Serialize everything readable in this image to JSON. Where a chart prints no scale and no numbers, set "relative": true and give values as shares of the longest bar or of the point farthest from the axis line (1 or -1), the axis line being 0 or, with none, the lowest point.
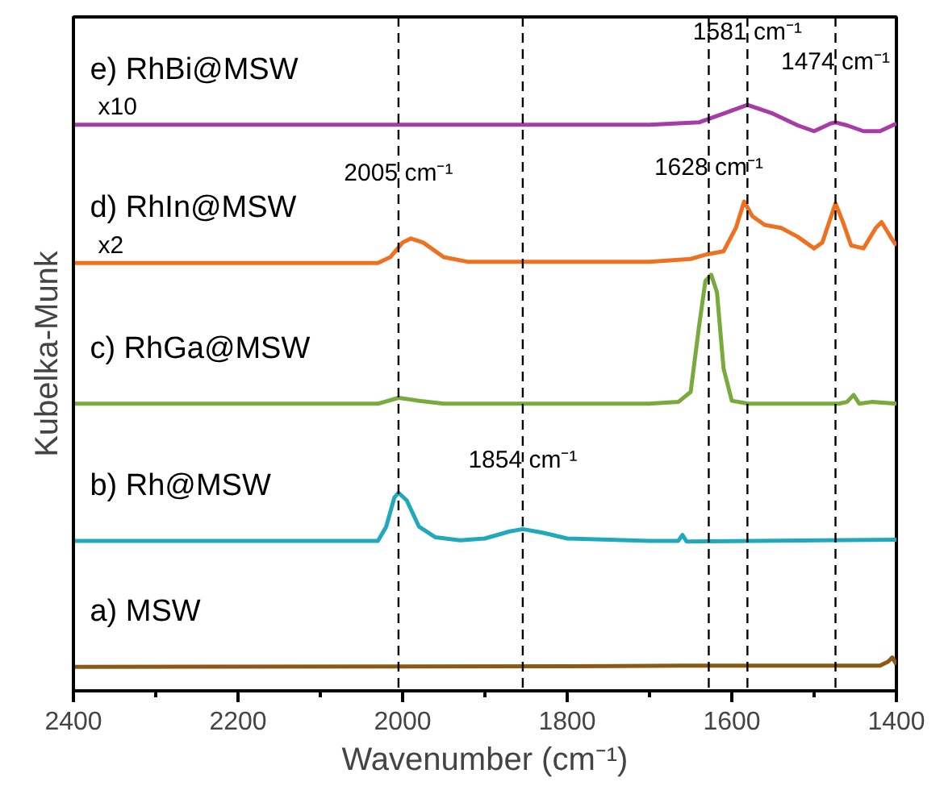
{
  "chart_data": {
    "type": "line",
    "relative": true,
    "xlabel": "Wavenumber (cm⁻¹)",
    "ylabel": "Kubelka-Munk",
    "xlim": [
      2400,
      1400
    ],
    "xticks": [
      2400,
      2200,
      2000,
      1800,
      1600,
      1400
    ],
    "grid": false,
    "series": [
      {
        "name": "e) RhBi@MSW",
        "color": "#a83ca6",
        "x": [
          2400,
          1700,
          1640,
          1610,
          1581,
          1550,
          1520,
          1500,
          1480,
          1474,
          1460,
          1440,
          1420,
          1400
        ],
        "values": [
          0.966,
          0.966,
          0.97,
          0.985,
          1.0,
          0.985,
          0.965,
          0.955,
          0.968,
          0.97,
          0.965,
          0.955,
          0.955,
          0.968
        ]
      },
      {
        "name": "d) RhIn@MSW",
        "color": "#f07020",
        "x": [
          2400,
          2030,
          2015,
          2000,
          1990,
          1975,
          1950,
          1920,
          1700,
          1650,
          1630,
          1610,
          1595,
          1585,
          1575,
          1560,
          1540,
          1520,
          1500,
          1490,
          1474,
          1465,
          1455,
          1440,
          1425,
          1418,
          1405,
          1400
        ],
        "values": [
          0.73,
          0.73,
          0.74,
          0.765,
          0.772,
          0.765,
          0.74,
          0.732,
          0.732,
          0.737,
          0.745,
          0.75,
          0.79,
          0.835,
          0.81,
          0.795,
          0.79,
          0.775,
          0.755,
          0.765,
          0.832,
          0.8,
          0.76,
          0.755,
          0.79,
          0.8,
          0.77,
          0.76
        ]
      },
      {
        "name": "c) RhGa@MSW",
        "color": "#78aa3c",
        "x": [
          2400,
          2030,
          2005,
          1980,
          1950,
          1700,
          1665,
          1650,
          1640,
          1632,
          1625,
          1618,
          1610,
          1600,
          1580,
          1470,
          1460,
          1452,
          1445,
          1430,
          1400
        ],
        "values": [
          0.49,
          0.49,
          0.5,
          0.495,
          0.49,
          0.49,
          0.493,
          0.51,
          0.62,
          0.7,
          0.71,
          0.68,
          0.55,
          0.495,
          0.49,
          0.49,
          0.493,
          0.505,
          0.49,
          0.493,
          0.49
        ]
      },
      {
        "name": "b) Rh@MSW",
        "color": "#20a8bc",
        "x": [
          2400,
          2030,
          2020,
          2010,
          2005,
          1995,
          1980,
          1960,
          1930,
          1900,
          1870,
          1854,
          1830,
          1800,
          1700,
          1665,
          1660,
          1655,
          1400
        ],
        "values": [
          0.256,
          0.256,
          0.28,
          0.33,
          0.338,
          0.325,
          0.28,
          0.262,
          0.257,
          0.26,
          0.272,
          0.276,
          0.27,
          0.26,
          0.256,
          0.256,
          0.266,
          0.255,
          0.258
        ]
      },
      {
        "name": "a) MSW",
        "color": "#8a5a14",
        "x": [
          2400,
          1800,
          1660,
          1420,
          1410,
          1405,
          1400
        ],
        "values": [
          0.041,
          0.042,
          0.043,
          0.043,
          0.05,
          0.057,
          0.045
        ]
      }
    ],
    "ref_lines": [
      {
        "axis": "x",
        "value": 2005
      },
      {
        "axis": "x",
        "value": 1854
      },
      {
        "axis": "x",
        "value": 1628
      },
      {
        "axis": "x",
        "value": 1581
      },
      {
        "axis": "x",
        "value": 1474
      }
    ],
    "annotations": [
      {
        "text": "1581 cm⁻¹",
        "x": 1581,
        "y": 1.1
      },
      {
        "text": "1474 cm⁻¹",
        "x": 1474,
        "y": 1.05
      },
      {
        "text": "2005 cm⁻¹",
        "x": 2005,
        "y": 0.86
      },
      {
        "text": "1628 cm⁻¹",
        "x": 1628,
        "y": 0.87
      },
      {
        "text": "1854 cm⁻¹",
        "x": 1854,
        "y": 0.37
      },
      "x10",
      "x2"
    ]
  }
}
